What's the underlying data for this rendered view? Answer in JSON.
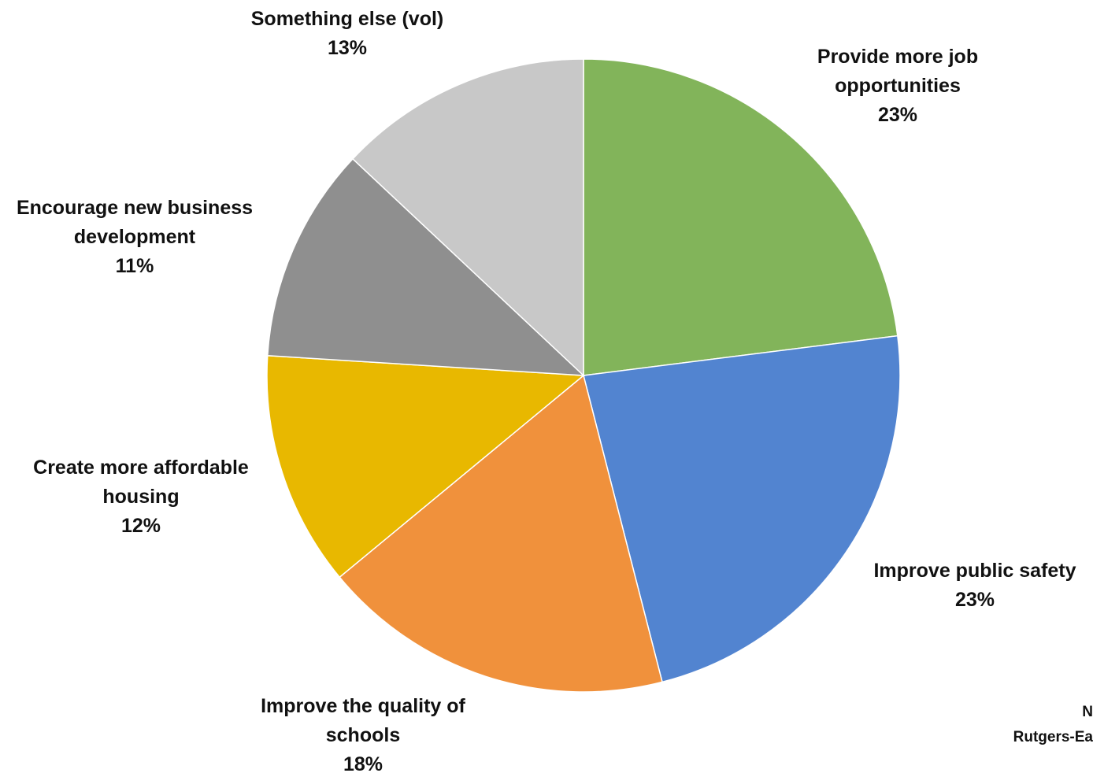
{
  "chart_data": {
    "type": "pie",
    "slices": [
      {
        "name": "category-job",
        "label_lines": [
          "Provide more job",
          "opportunities"
        ],
        "value": 23,
        "value_label": "23%",
        "color": "#82b45a"
      },
      {
        "name": "category-safety",
        "label_lines": [
          "Improve public safety"
        ],
        "value": 23,
        "value_label": "23%",
        "color": "#5284d0"
      },
      {
        "name": "category-schools",
        "label_lines": [
          "Improve the quality of",
          "schools"
        ],
        "value": 18,
        "value_label": "18%",
        "color": "#f0913c"
      },
      {
        "name": "category-housing",
        "label_lines": [
          "Create more affordable",
          "housing"
        ],
        "value": 12,
        "value_label": "12%",
        "color": "#e8b800"
      },
      {
        "name": "category-business",
        "label_lines": [
          "Encourage new business",
          "development"
        ],
        "value": 11,
        "value_label": "11%",
        "color": "#8f8f8f"
      },
      {
        "name": "category-else",
        "label_lines": [
          "Something else (vol)"
        ],
        "value": 13,
        "value_label": "13%",
        "color": "#c8c8c8"
      }
    ],
    "start": "12 o'clock",
    "direction": "clockwise",
    "legend": "none"
  },
  "credit": {
    "line1": "N",
    "line2": "Rutgers-Ea"
  }
}
